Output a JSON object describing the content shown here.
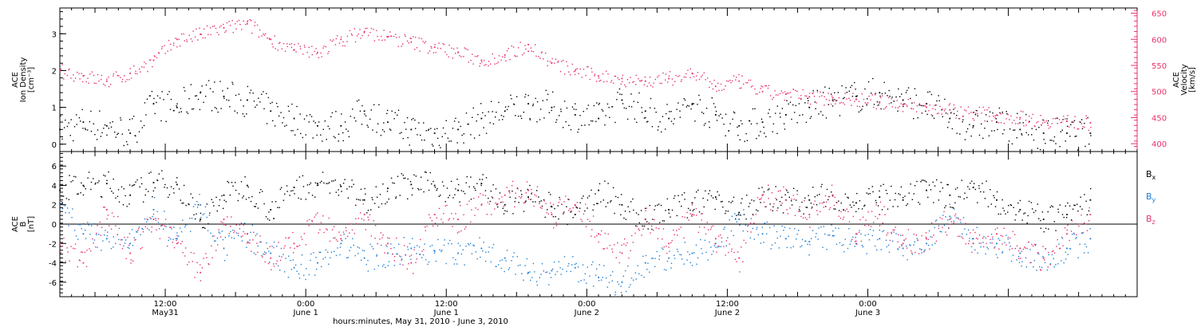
{
  "colors": {
    "density": "#000000",
    "velocity": "#e8336a",
    "bx": "#000000",
    "by": "#1f7fd6",
    "bz": "#e8336a",
    "axis": "#000000"
  },
  "chart_data": [
    {
      "type": "scatter",
      "ylabel_lines": [
        "ACE",
        "Ion Density",
        "[cm⁻³]"
      ],
      "ylim": [
        -0.2,
        3.7
      ],
      "yticks": [
        0,
        1,
        2,
        3
      ],
      "y2label_lines": [
        "ACE",
        "Velocity",
        "[km/s]"
      ],
      "y2lim": [
        385,
        660
      ],
      "y2ticks": [
        400,
        450,
        500,
        550,
        600,
        650
      ],
      "xlim": [
        0,
        92
      ],
      "series": [
        {
          "color_key": "density",
          "axis": "left",
          "x": [
            0,
            2,
            4,
            6,
            8,
            10,
            12,
            14,
            16,
            18,
            20,
            22,
            24,
            26,
            28,
            30,
            32,
            34,
            36,
            38,
            40,
            42,
            44,
            46,
            48,
            50,
            52,
            54,
            56,
            58,
            60,
            62,
            64,
            66,
            68,
            70,
            72,
            74,
            76,
            78,
            80,
            82,
            84,
            86,
            88
          ],
          "y": [
            0.4,
            0.6,
            0.5,
            0.3,
            1.1,
            1.0,
            1.4,
            1.3,
            1.2,
            0.9,
            0.7,
            0.5,
            0.5,
            0.9,
            0.6,
            0.4,
            0.3,
            0.4,
            0.7,
            0.9,
            1.1,
            1.0,
            0.8,
            0.7,
            1.2,
            0.9,
            0.7,
            1.1,
            0.8,
            0.5,
            0.6,
            0.8,
            1.0,
            1.2,
            1.3,
            1.4,
            1.2,
            1.1,
            0.7,
            0.5,
            0.6,
            0.4,
            0.3,
            0.3,
            0.3
          ]
        },
        {
          "color_key": "velocity",
          "axis": "right",
          "x": [
            0,
            2,
            4,
            6,
            8,
            10,
            12,
            14,
            16,
            18,
            20,
            22,
            24,
            26,
            28,
            30,
            32,
            34,
            36,
            38,
            40,
            42,
            44,
            46,
            48,
            50,
            52,
            54,
            56,
            58,
            60,
            62,
            64,
            66,
            68,
            70,
            72,
            74,
            76,
            78,
            80,
            82,
            84,
            86,
            88
          ],
          "y": [
            540,
            530,
            520,
            535,
            560,
            600,
            610,
            622,
            630,
            600,
            580,
            575,
            600,
            615,
            605,
            595,
            585,
            575,
            560,
            570,
            590,
            555,
            540,
            530,
            525,
            520,
            525,
            535,
            510,
            520,
            500,
            495,
            490,
            488,
            485,
            480,
            475,
            470,
            465,
            460,
            455,
            450,
            445,
            443,
            440
          ]
        }
      ]
    },
    {
      "type": "scatter",
      "ylabel_lines": [
        "ACE",
        "B",
        "[nT]"
      ],
      "ylim": [
        -7.5,
        7.5
      ],
      "yticks": [
        -6,
        -4,
        -2,
        0,
        2,
        4,
        6
      ],
      "zero_line": true,
      "legend_position": "right",
      "xlim": [
        0,
        92
      ],
      "xtick_labels": [
        {
          "x": 9,
          "line1": "12:00",
          "line2": "May31"
        },
        {
          "x": 21,
          "line1": "0:00",
          "line2": "June 1"
        },
        {
          "x": 33,
          "line1": "12:00",
          "line2": "June 1"
        },
        {
          "x": 45,
          "line1": "0:00",
          "line2": "June 2"
        },
        {
          "x": 57,
          "line1": "12:00",
          "line2": "June 2"
        },
        {
          "x": 69,
          "line1": "0:00",
          "line2": "June 3"
        }
      ],
      "xlabel": "hours:minutes, May 31, 2010 - June  3, 2010",
      "series": [
        {
          "name": "B",
          "subscript": "x",
          "color_key": "bx",
          "x": [
            0,
            2,
            4,
            6,
            8,
            10,
            12,
            14,
            16,
            18,
            20,
            22,
            24,
            26,
            28,
            30,
            32,
            34,
            36,
            38,
            40,
            42,
            44,
            46,
            48,
            50,
            52,
            54,
            56,
            58,
            60,
            62,
            64,
            66,
            68,
            70,
            72,
            74,
            76,
            78,
            80,
            82,
            84,
            86,
            88
          ],
          "y": [
            3.5,
            4.0,
            4.2,
            3.0,
            4.3,
            4.1,
            0.5,
            3.0,
            4.0,
            1.5,
            3.8,
            4.2,
            3.9,
            2.5,
            3.7,
            4.1,
            4.0,
            3.5,
            4.2,
            2.0,
            2.8,
            1.8,
            1.0,
            3.5,
            2.0,
            0.5,
            1.5,
            2.2,
            2.8,
            1.2,
            3.0,
            2.5,
            2.5,
            3.0,
            2.2,
            2.8,
            2.5,
            3.5,
            3.0,
            3.8,
            2.5,
            1.5,
            0.5,
            1.0,
            2.5
          ]
        },
        {
          "name": "B",
          "subscript": "y",
          "color_key": "by",
          "x": [
            0,
            2,
            4,
            6,
            8,
            10,
            12,
            14,
            16,
            18,
            20,
            22,
            24,
            26,
            28,
            30,
            32,
            34,
            36,
            38,
            40,
            42,
            44,
            46,
            48,
            50,
            52,
            54,
            56,
            58,
            60,
            62,
            64,
            66,
            68,
            70,
            72,
            74,
            76,
            78,
            80,
            82,
            84,
            86,
            88
          ],
          "y": [
            2.0,
            -1.0,
            -1.5,
            -2.0,
            1.5,
            -1.5,
            2.0,
            -2.5,
            -1.0,
            -3.0,
            -4.5,
            -4.0,
            -2.0,
            -3.5,
            -3.0,
            -2.5,
            -2.8,
            -3.0,
            -2.5,
            -3.5,
            -5.0,
            -4.8,
            -4.5,
            -5.5,
            -6.0,
            -4.0,
            -3.5,
            -3.0,
            -2.0,
            0.5,
            -1.0,
            -1.5,
            -1.8,
            -1.2,
            -2.0,
            -1.5,
            -2.5,
            -2.0,
            0.8,
            -1.5,
            -2.0,
            -3.0,
            -3.5,
            -2.5,
            -1.5
          ]
        },
        {
          "name": "B",
          "subscript": "z",
          "color_key": "bz",
          "x": [
            0,
            2,
            4,
            6,
            8,
            10,
            12,
            14,
            16,
            18,
            20,
            22,
            24,
            26,
            28,
            30,
            32,
            34,
            36,
            38,
            40,
            42,
            44,
            46,
            48,
            50,
            52,
            54,
            56,
            58,
            60,
            62,
            64,
            66,
            68,
            70,
            72,
            74,
            76,
            78,
            80,
            82,
            84,
            86,
            88
          ],
          "y": [
            -2.0,
            -4.0,
            1.5,
            -3.0,
            0.5,
            -2.0,
            -5.0,
            0.5,
            -1.0,
            -3.5,
            -2.0,
            0.0,
            -1.5,
            1.0,
            -2.0,
            -4.0,
            1.0,
            0.5,
            2.0,
            3.0,
            3.5,
            1.0,
            2.0,
            -1.0,
            -3.0,
            0.5,
            -2.0,
            1.0,
            -1.5,
            -3.5,
            3.0,
            2.5,
            1.0,
            3.0,
            -1.0,
            1.0,
            -2.0,
            -1.5,
            0.5,
            -2.0,
            -1.0,
            -2.5,
            -3.5,
            -1.0,
            1.0
          ]
        }
      ]
    }
  ]
}
